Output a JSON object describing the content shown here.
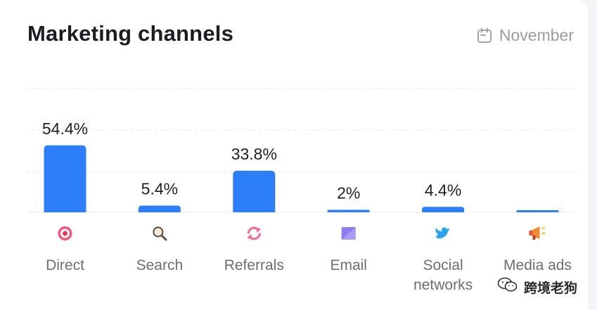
{
  "card": {
    "title": "Marketing channels",
    "period": "November",
    "period_icon": "calendar-icon"
  },
  "chart_data": {
    "type": "bar",
    "title": "Marketing channels",
    "categories": [
      "Direct",
      "Search",
      "Referrals",
      "Email",
      "Social networks",
      "Media ads"
    ],
    "category_lines": [
      [
        "Direct"
      ],
      [
        "Search"
      ],
      [
        "Referrals"
      ],
      [
        "Email"
      ],
      [
        "Social",
        "networks"
      ],
      [
        "Media ads"
      ]
    ],
    "values": [
      54.4,
      5.4,
      33.8,
      2,
      4.4,
      0.5
    ],
    "labels": [
      "54.4%",
      "5.4%",
      "33.8%",
      "2%",
      "4.4%",
      ""
    ],
    "category_icons": [
      "target-icon",
      "search-icon",
      "refresh-icon",
      "email-icon",
      "twitter-icon",
      "megaphone-icon"
    ],
    "grid": true,
    "bar_color": "#2d7ff9"
  },
  "watermark": {
    "text": "跨境老狗",
    "icon": "wechat-icon"
  }
}
